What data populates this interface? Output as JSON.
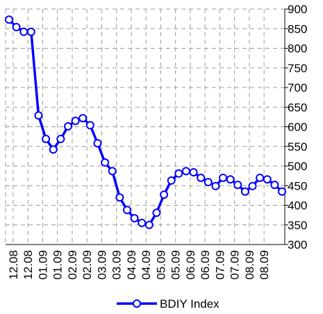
{
  "chart_data": {
    "type": "line",
    "categories": [
      "12.08",
      null,
      "12.08",
      null,
      "01.09",
      null,
      "01.09",
      null,
      "02.09",
      null,
      "02.09",
      null,
      "03.09",
      null,
      "03.09",
      null,
      "04.09",
      null,
      "04.09",
      null,
      "05.09",
      null,
      "05.09",
      null,
      "06.09",
      null,
      "06.09",
      null,
      "07.09",
      null,
      "07.09",
      null,
      "08.09",
      null,
      "08.09",
      null,
      null,
      null
    ],
    "series": [
      {
        "name": "BDIY Index",
        "color": "#0000ff",
        "values": [
          873,
          854,
          842,
          842,
          629,
          569,
          542,
          569,
          601,
          615,
          622,
          604,
          558,
          509,
          487,
          420,
          388,
          367,
          355,
          350,
          381,
          427,
          463,
          481,
          487,
          484,
          470,
          459,
          449,
          470,
          466,
          452,
          435,
          449,
          470,
          466,
          452,
          435
        ]
      }
    ],
    "ylim": [
      300,
      900
    ],
    "yticks": [
      300,
      350,
      400,
      450,
      500,
      550,
      600,
      650,
      700,
      750,
      800,
      850,
      900
    ],
    "grid": true,
    "legend": "bottom"
  }
}
